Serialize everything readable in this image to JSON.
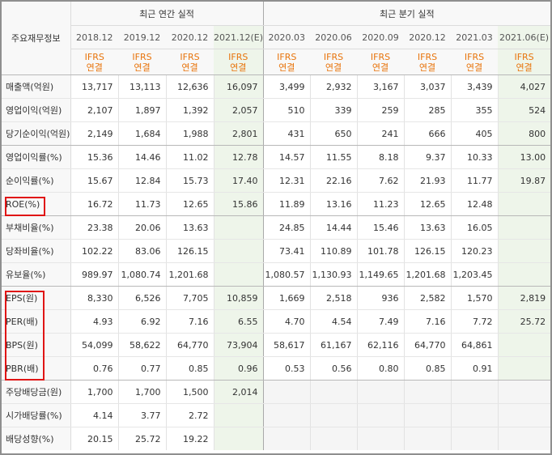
{
  "header": {
    "label_title": "주요재무정보",
    "annual_title": "최근 연간 실적",
    "quarterly_title": "최근 분기 실적",
    "annual_periods": [
      "2018.12",
      "2019.12",
      "2020.12",
      "2021.12(E)"
    ],
    "quarterly_periods": [
      "2020.03",
      "2020.06",
      "2020.09",
      "2020.12",
      "2021.03",
      "2021.06(E)"
    ],
    "basis_top": "IFRS",
    "basis_bottom": "연결"
  },
  "colors": {
    "estimate_bg": "#eef5ea",
    "ifrs_text": "#e8740c",
    "highlight_box": "#e01515",
    "header_bg": "#f8f8f8"
  },
  "highlight_groups": [
    {
      "name": "roe-box",
      "rows": [
        "ROE(%)"
      ]
    },
    {
      "name": "valuation-box",
      "rows": [
        "EPS(원)",
        "PER(배)",
        "BPS(원)",
        "PBR(배)"
      ]
    }
  ],
  "rows": [
    {
      "label": "매출액(억원)",
      "annual": [
        "13,717",
        "13,113",
        "12,636",
        "16,097"
      ],
      "quarterly": [
        "3,499",
        "2,932",
        "3,167",
        "3,037",
        "3,439",
        "4,027"
      ]
    },
    {
      "label": "영업이익(억원)",
      "annual": [
        "2,107",
        "1,897",
        "1,392",
        "2,057"
      ],
      "quarterly": [
        "510",
        "339",
        "259",
        "285",
        "355",
        "524"
      ]
    },
    {
      "label": "당기순이익(억원)",
      "annual": [
        "2,149",
        "1,684",
        "1,988",
        "2,801"
      ],
      "quarterly": [
        "431",
        "650",
        "241",
        "666",
        "405",
        "800"
      ]
    },
    {
      "label": "영업이익률(%)",
      "annual": [
        "15.36",
        "14.46",
        "11.02",
        "12.78"
      ],
      "quarterly": [
        "14.57",
        "11.55",
        "8.18",
        "9.37",
        "10.33",
        "13.00"
      ]
    },
    {
      "label": "순이익률(%)",
      "annual": [
        "15.67",
        "12.84",
        "15.73",
        "17.40"
      ],
      "quarterly": [
        "12.31",
        "22.16",
        "7.62",
        "21.93",
        "11.77",
        "19.87"
      ]
    },
    {
      "label": "ROE(%)",
      "annual": [
        "16.72",
        "11.73",
        "12.65",
        "15.86"
      ],
      "quarterly": [
        "11.89",
        "13.16",
        "11.23",
        "12.65",
        "12.48",
        ""
      ]
    },
    {
      "label": "부채비율(%)",
      "annual": [
        "23.38",
        "20.06",
        "13.63",
        ""
      ],
      "quarterly": [
        "24.85",
        "14.44",
        "15.46",
        "13.63",
        "16.05",
        ""
      ]
    },
    {
      "label": "당좌비율(%)",
      "annual": [
        "102.22",
        "83.06",
        "126.15",
        ""
      ],
      "quarterly": [
        "73.41",
        "110.89",
        "101.78",
        "126.15",
        "120.23",
        ""
      ]
    },
    {
      "label": "유보율(%)",
      "annual": [
        "989.97",
        "1,080.74",
        "1,201.68",
        ""
      ],
      "quarterly": [
        "1,080.57",
        "1,130.93",
        "1,149.65",
        "1,201.68",
        "1,203.45",
        ""
      ]
    },
    {
      "label": "EPS(원)",
      "annual": [
        "8,330",
        "6,526",
        "7,705",
        "10,859"
      ],
      "quarterly": [
        "1,669",
        "2,518",
        "936",
        "2,582",
        "1,570",
        "2,819"
      ]
    },
    {
      "label": "PER(배)",
      "annual": [
        "4.93",
        "6.92",
        "7.16",
        "6.55"
      ],
      "quarterly": [
        "4.70",
        "4.54",
        "7.49",
        "7.16",
        "7.72",
        "25.72"
      ]
    },
    {
      "label": "BPS(원)",
      "annual": [
        "54,099",
        "58,622",
        "64,770",
        "73,904"
      ],
      "quarterly": [
        "58,617",
        "61,167",
        "62,116",
        "64,770",
        "64,861",
        ""
      ]
    },
    {
      "label": "PBR(배)",
      "annual": [
        "0.76",
        "0.77",
        "0.85",
        "0.96"
      ],
      "quarterly": [
        "0.53",
        "0.56",
        "0.80",
        "0.85",
        "0.91",
        ""
      ]
    },
    {
      "label": "주당배당금(원)",
      "annual": [
        "1,700",
        "1,700",
        "1,500",
        "2,014"
      ],
      "quarterly": [
        "",
        "",
        "",
        "",
        "",
        ""
      ]
    },
    {
      "label": "시가배당률(%)",
      "annual": [
        "4.14",
        "3.77",
        "2.72",
        ""
      ],
      "quarterly": [
        "",
        "",
        "",
        "",
        "",
        ""
      ]
    },
    {
      "label": "배당성향(%)",
      "annual": [
        "20.15",
        "25.72",
        "19.22",
        ""
      ],
      "quarterly": [
        "",
        "",
        "",
        "",
        "",
        ""
      ]
    }
  ]
}
